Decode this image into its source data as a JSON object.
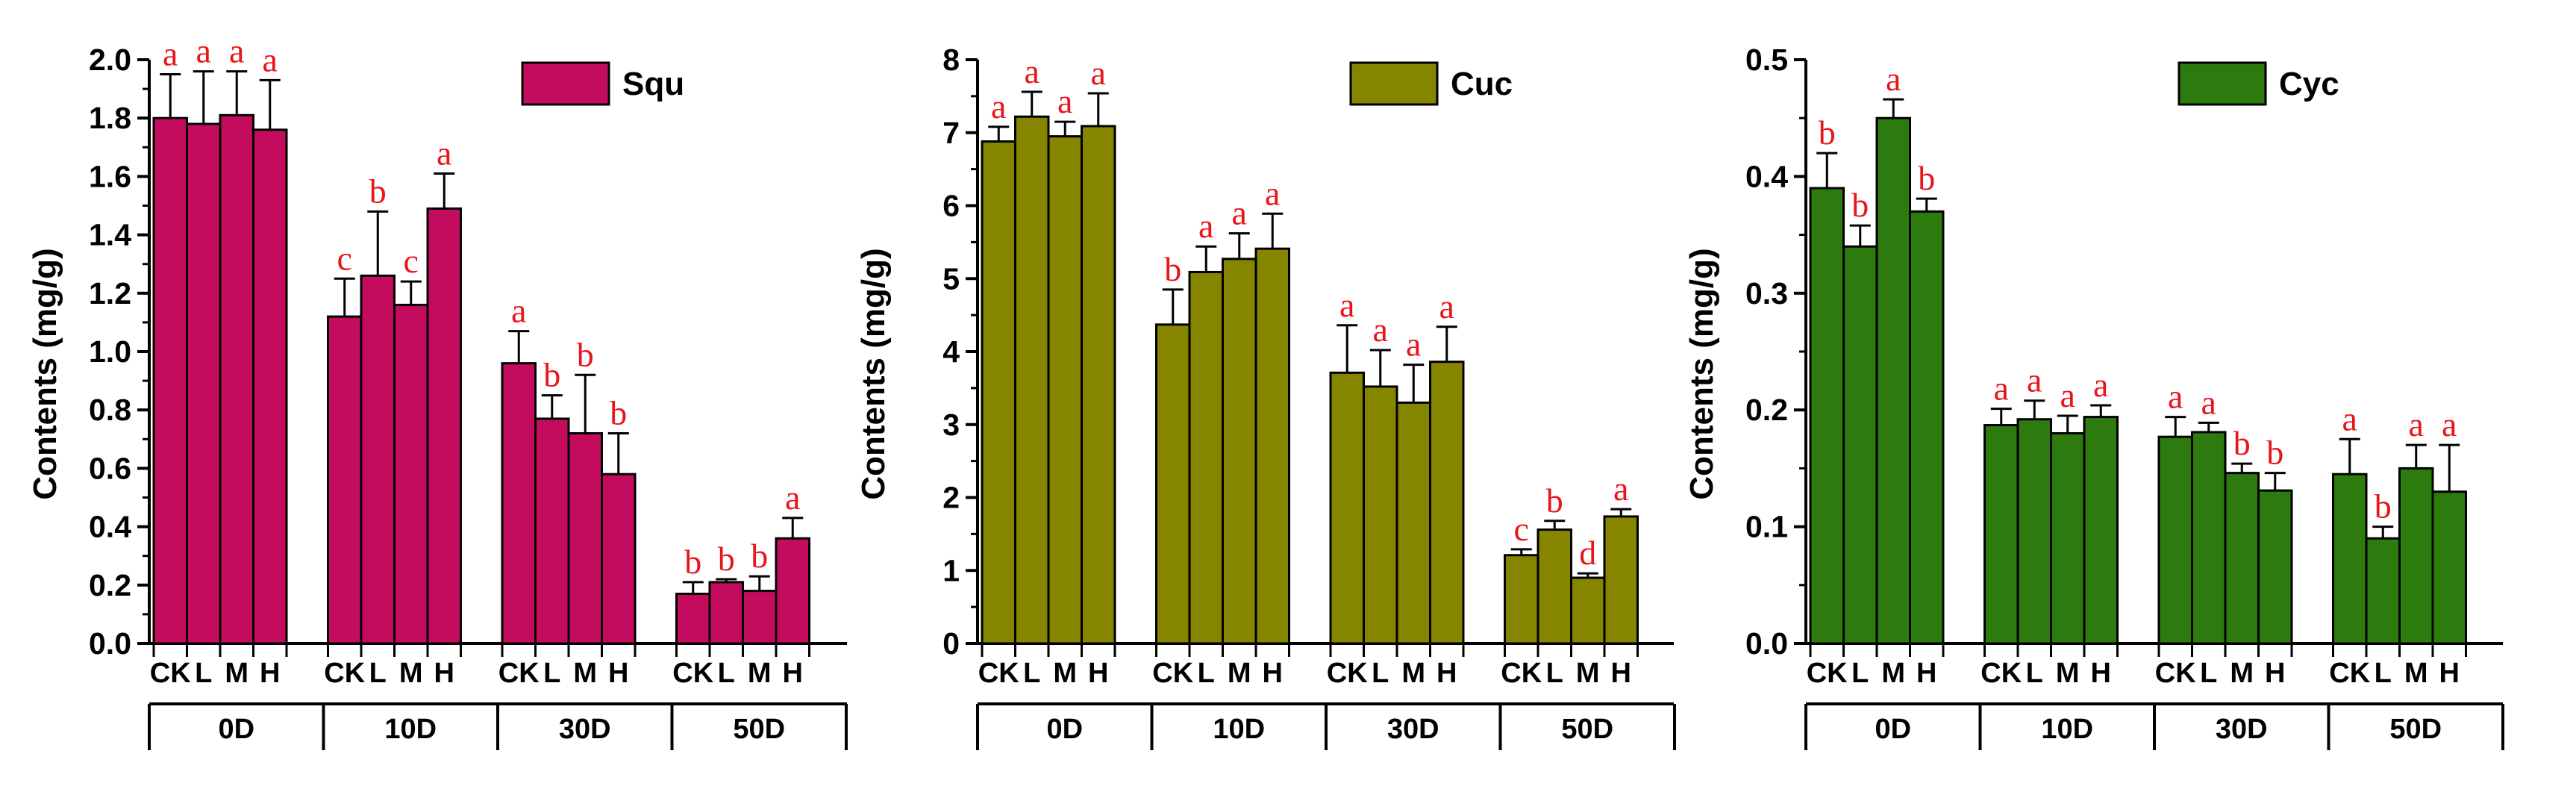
{
  "chart_data": [
    {
      "type": "bar",
      "legend": "Squ",
      "ylabel": "Contents (mg/g)",
      "ylim": [
        0,
        2.0
      ],
      "yticks": [
        "0.0",
        "0.2",
        "0.4",
        "0.6",
        "0.8",
        "1.0",
        "1.2",
        "1.4",
        "1.6",
        "1.8",
        "2.0"
      ],
      "tick_values": [
        0,
        0.2,
        0.4,
        0.6,
        0.8,
        1.0,
        1.2,
        1.4,
        1.6,
        1.8,
        2.0
      ],
      "color": "#c40c5f",
      "groups": [
        "0D",
        "10D",
        "30D",
        "50D"
      ],
      "categories": [
        "CK",
        "L",
        "M",
        "H"
      ],
      "values": [
        [
          1.8,
          1.78,
          1.81,
          1.76
        ],
        [
          1.12,
          1.26,
          1.16,
          1.49
        ],
        [
          0.96,
          0.77,
          0.72,
          0.58
        ],
        [
          0.17,
          0.21,
          0.18,
          0.36
        ]
      ],
      "errors": [
        [
          0.15,
          0.18,
          0.15,
          0.17
        ],
        [
          0.13,
          0.22,
          0.08,
          0.12
        ],
        [
          0.11,
          0.08,
          0.2,
          0.14
        ],
        [
          0.04,
          0.01,
          0.05,
          0.07
        ]
      ],
      "significance": [
        [
          "a",
          "a",
          "a",
          "a"
        ],
        [
          "c",
          "b",
          "c",
          "a"
        ],
        [
          "a",
          "b",
          "b",
          "b"
        ],
        [
          "b",
          "b",
          "b",
          "a"
        ]
      ]
    },
    {
      "type": "bar",
      "legend": "Cuc",
      "ylabel": "Contents (mg/g)",
      "ylim": [
        0,
        8
      ],
      "yticks": [
        "0",
        "1",
        "2",
        "3",
        "4",
        "5",
        "6",
        "7",
        "8"
      ],
      "tick_values": [
        0,
        1,
        2,
        3,
        4,
        5,
        6,
        7,
        8
      ],
      "color": "#858500",
      "groups": [
        "0D",
        "10D",
        "30D",
        "50D"
      ],
      "categories": [
        "CK",
        "L",
        "M",
        "H"
      ],
      "values": [
        [
          6.88,
          7.22,
          6.95,
          7.09
        ],
        [
          4.37,
          5.09,
          5.27,
          5.41
        ],
        [
          3.71,
          3.52,
          3.3,
          3.86
        ],
        [
          1.21,
          1.56,
          0.9,
          1.74
        ]
      ],
      "errors": [
        [
          0.2,
          0.34,
          0.2,
          0.45
        ],
        [
          0.48,
          0.35,
          0.35,
          0.48
        ],
        [
          0.65,
          0.5,
          0.52,
          0.48
        ],
        [
          0.08,
          0.12,
          0.06,
          0.1
        ]
      ],
      "significance": [
        [
          "a",
          "a",
          "a",
          "a"
        ],
        [
          "b",
          "a",
          "a",
          "a"
        ],
        [
          "a",
          "a",
          "a",
          "a"
        ],
        [
          "c",
          "b",
          "d",
          "a"
        ]
      ]
    },
    {
      "type": "bar",
      "legend": "Cyc",
      "ylabel": "Contents (mg/g)",
      "ylim": [
        0,
        0.5
      ],
      "yticks": [
        "0.0",
        "0.1",
        "0.2",
        "0.3",
        "0.4",
        "0.5"
      ],
      "tick_values": [
        0,
        0.1,
        0.2,
        0.3,
        0.4,
        0.5
      ],
      "color": "#2d7b0f",
      "groups": [
        "0D",
        "10D",
        "30D",
        "50D"
      ],
      "categories": [
        "CK",
        "L",
        "M",
        "H"
      ],
      "values": [
        [
          0.39,
          0.34,
          0.45,
          0.37
        ],
        [
          0.187,
          0.192,
          0.18,
          0.194
        ],
        [
          0.177,
          0.181,
          0.146,
          0.131
        ],
        [
          0.145,
          0.09,
          0.15,
          0.13
        ]
      ],
      "errors": [
        [
          0.03,
          0.018,
          0.016,
          0.011
        ],
        [
          0.014,
          0.016,
          0.015,
          0.01
        ],
        [
          0.017,
          0.008,
          0.008,
          0.015
        ],
        [
          0.03,
          0.01,
          0.02,
          0.04
        ]
      ],
      "significance": [
        [
          "b",
          "b",
          "a",
          "b"
        ],
        [
          "a",
          "a",
          "a",
          "a"
        ],
        [
          "a",
          "a",
          "b",
          "b"
        ],
        [
          "a",
          "b",
          "a",
          "a"
        ]
      ]
    }
  ]
}
